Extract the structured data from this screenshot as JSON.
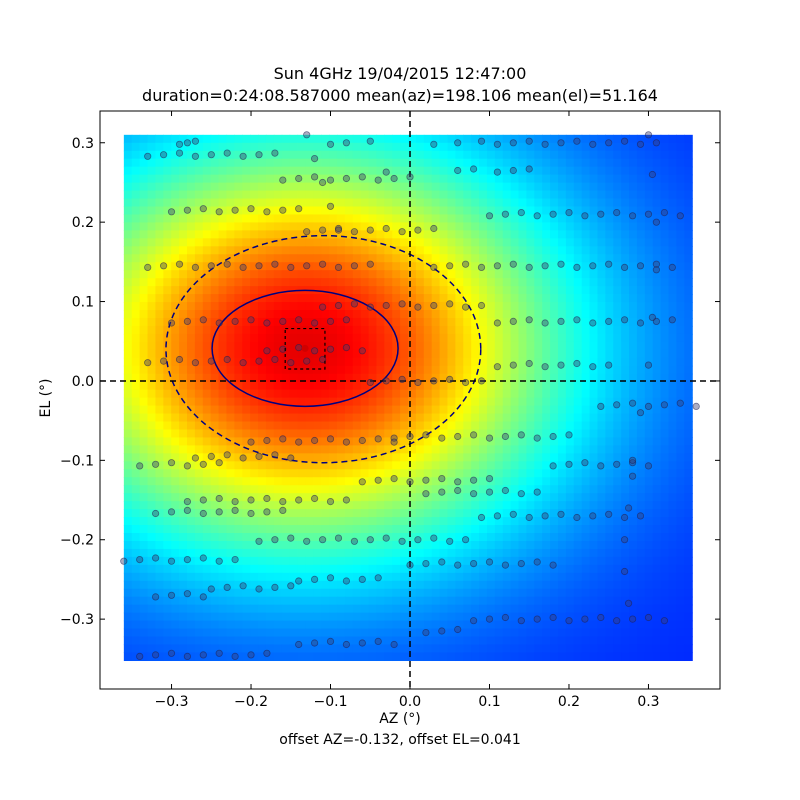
{
  "chart_data": {
    "type": "heatmap",
    "title": "Sun 4GHz 19/04/2015 12:47:00",
    "subtitle": "duration=0:24:08.587000 mean(az)=198.106 mean(el)=51.164",
    "xlabel": "AZ (°)",
    "ylabel": "EL (°)",
    "footer": "offset AZ=-0.132, offset EL=0.041",
    "colormap": "jet",
    "grid": false,
    "xlim": [
      -0.39,
      0.39
    ],
    "ylim": [
      -0.388,
      0.34
    ],
    "heatmap_extent": {
      "x": [
        -0.36,
        0.355
      ],
      "y": [
        -0.352,
        0.31
      ]
    },
    "heatmap_peak": {
      "az": -0.132,
      "el": 0.041
    },
    "xticks": [
      -0.3,
      -0.2,
      -0.1,
      0.0,
      0.1,
      0.2,
      0.3
    ],
    "yticks": [
      -0.3,
      -0.2,
      -0.1,
      0.0,
      0.1,
      0.2,
      0.3
    ],
    "xtick_labels": [
      "−0.3",
      "−0.2",
      "−0.1",
      "0.0",
      "0.1",
      "0.2",
      "0.3"
    ],
    "ytick_labels": [
      "−0.3",
      "−0.2",
      "−0.1",
      "0.0",
      "0.1",
      "0.2",
      "0.3"
    ],
    "crosshair": {
      "az": 0.0,
      "el": 0.0,
      "style": "dashed"
    },
    "ellipses": [
      {
        "name": "inner",
        "center": [
          -0.132,
          0.041
        ],
        "semi_axes": [
          0.117,
          0.073
        ],
        "style": "solid",
        "color": "#000080"
      },
      {
        "name": "outer",
        "center": [
          -0.109,
          0.04
        ],
        "semi_axes": [
          0.198,
          0.143
        ],
        "style": "dashed",
        "color": "#000080"
      }
    ],
    "offset_box": {
      "x": [
        -0.157,
        -0.107
      ],
      "y": [
        0.015,
        0.066
      ],
      "style": "dotted"
    },
    "peak_marker": {
      "az": -0.132,
      "el": 0.041,
      "color": "#d00000"
    },
    "scan_rows": [
      {
        "el": 0.3,
        "x": [
          -0.29,
          -0.28,
          -0.27,
          -0.1,
          -0.08,
          -0.05,
          0.03,
          0.06,
          0.09,
          0.11,
          0.13,
          0.15,
          0.17,
          0.19,
          0.21,
          0.23,
          0.25,
          0.27,
          0.29,
          0.31
        ]
      },
      {
        "el": 0.285,
        "x": [
          -0.33,
          -0.31,
          -0.29,
          -0.27,
          -0.25,
          -0.23,
          -0.21,
          -0.19,
          -0.17
        ]
      },
      {
        "el": 0.265,
        "x": [
          -0.03,
          0.06,
          0.08,
          0.11,
          0.13,
          0.15
        ]
      },
      {
        "el": 0.255,
        "x": [
          -0.16,
          -0.14,
          -0.12,
          -0.1,
          -0.08,
          -0.06,
          -0.04,
          -0.02,
          0.0
        ]
      },
      {
        "el": 0.215,
        "x": [
          -0.3,
          -0.28,
          -0.26,
          -0.24,
          -0.22,
          -0.2,
          -0.18,
          -0.16,
          -0.14
        ]
      },
      {
        "el": 0.21,
        "x": [
          0.1,
          0.12,
          0.14,
          0.16,
          0.18,
          0.2,
          0.22,
          0.24,
          0.26,
          0.28,
          0.3,
          0.32,
          0.34
        ]
      },
      {
        "el": 0.19,
        "x": [
          -0.13,
          -0.11,
          -0.09,
          -0.07,
          -0.05,
          -0.03,
          -0.01,
          0.01,
          0.03
        ]
      },
      {
        "el": 0.145,
        "x": [
          0.03,
          0.05,
          0.07,
          0.09,
          0.11,
          0.13,
          0.15,
          0.17,
          0.19,
          0.21,
          0.23,
          0.25,
          0.27,
          0.29,
          0.31,
          0.33
        ]
      },
      {
        "el": 0.145,
        "x": [
          -0.33,
          -0.31,
          -0.29,
          -0.27,
          -0.25,
          -0.23,
          -0.21,
          -0.19,
          -0.17,
          -0.15,
          -0.13,
          -0.11,
          -0.09,
          -0.07,
          -0.05
        ]
      },
      {
        "el": 0.095,
        "x": [
          -0.11,
          -0.09,
          -0.07,
          -0.05,
          -0.03,
          -0.01,
          0.01,
          0.03,
          0.05,
          0.07,
          0.09
        ]
      },
      {
        "el": 0.075,
        "x": [
          -0.3,
          -0.28,
          -0.26,
          -0.24,
          -0.22,
          -0.2,
          -0.18,
          -0.16,
          -0.14,
          -0.12,
          -0.1,
          -0.08
        ]
      },
      {
        "el": 0.075,
        "x": [
          0.11,
          0.13,
          0.15,
          0.17,
          0.19,
          0.21,
          0.23,
          0.25,
          0.27,
          0.29,
          0.31,
          0.33
        ]
      },
      {
        "el": 0.04,
        "x": [
          -0.18,
          -0.16,
          -0.14,
          -0.12,
          -0.1,
          -0.08,
          -0.06
        ]
      },
      {
        "el": 0.025,
        "x": [
          -0.33,
          -0.31,
          -0.29,
          -0.27,
          -0.25,
          -0.23,
          -0.21,
          -0.19,
          -0.17,
          -0.15,
          -0.13,
          -0.11
        ]
      },
      {
        "el": 0.02,
        "x": [
          0.11,
          0.13,
          0.15,
          0.17,
          0.19,
          0.21,
          0.23,
          0.25
        ]
      },
      {
        "el": 0.0,
        "x": [
          -0.05,
          -0.03,
          -0.01,
          0.01,
          0.03,
          0.05,
          0.07,
          0.09
        ]
      },
      {
        "el": -0.03,
        "x": [
          0.24,
          0.26,
          0.28,
          0.3,
          0.32,
          0.34,
          0.36
        ]
      },
      {
        "el": -0.07,
        "x": [
          -0.02,
          0.0,
          0.02,
          0.04,
          0.06,
          0.08,
          0.1,
          0.12,
          0.14,
          0.16,
          0.18,
          0.2
        ]
      },
      {
        "el": -0.075,
        "x": [
          -0.2,
          -0.18,
          -0.16,
          -0.14,
          -0.12,
          -0.1,
          -0.08,
          -0.06,
          -0.04,
          -0.02
        ]
      },
      {
        "el": -0.095,
        "x": [
          -0.27,
          -0.25,
          -0.23,
          -0.21,
          -0.19,
          -0.17,
          -0.15
        ]
      },
      {
        "el": -0.105,
        "x": [
          -0.34,
          -0.32,
          -0.3,
          -0.28,
          -0.26,
          -0.24
        ]
      },
      {
        "el": -0.105,
        "x": [
          0.18,
          0.2,
          0.22,
          0.24,
          0.26,
          0.28,
          0.3
        ]
      },
      {
        "el": -0.125,
        "x": [
          -0.06,
          -0.04,
          -0.02,
          0.0,
          0.02,
          0.04,
          0.06,
          0.08,
          0.1
        ]
      },
      {
        "el": -0.15,
        "x": [
          -0.28,
          -0.26,
          -0.24,
          -0.22,
          -0.2,
          -0.18,
          -0.16,
          -0.14,
          -0.12,
          -0.1,
          -0.08
        ]
      },
      {
        "el": -0.14,
        "x": [
          0.02,
          0.04,
          0.06,
          0.08,
          0.1,
          0.12,
          0.14,
          0.16
        ]
      },
      {
        "el": -0.165,
        "x": [
          -0.32,
          -0.3,
          -0.28,
          -0.26,
          -0.24,
          -0.22,
          -0.2,
          -0.18,
          -0.16
        ]
      },
      {
        "el": -0.17,
        "x": [
          0.09,
          0.11,
          0.13,
          0.15,
          0.17,
          0.19,
          0.21,
          0.23,
          0.25,
          0.27,
          0.29
        ]
      },
      {
        "el": -0.2,
        "x": [
          -0.19,
          -0.17,
          -0.15,
          -0.13,
          -0.11,
          -0.09,
          -0.07,
          -0.05,
          -0.03,
          -0.01,
          0.01,
          0.03,
          0.05,
          0.07
        ]
      },
      {
        "el": -0.225,
        "x": [
          -0.36,
          -0.34,
          -0.32,
          -0.3,
          -0.28,
          -0.26,
          -0.24,
          -0.22
        ]
      },
      {
        "el": -0.23,
        "x": [
          0.0,
          0.02,
          0.04,
          0.06,
          0.08,
          0.1,
          0.12,
          0.14,
          0.16,
          0.18
        ]
      },
      {
        "el": -0.25,
        "x": [
          -0.14,
          -0.12,
          -0.1,
          -0.08,
          -0.06,
          -0.04
        ]
      },
      {
        "el": -0.26,
        "x": [
          -0.25,
          -0.23,
          -0.21,
          -0.19,
          -0.17,
          -0.15
        ]
      },
      {
        "el": -0.27,
        "x": [
          -0.32,
          -0.3,
          -0.28,
          -0.26
        ]
      },
      {
        "el": -0.3,
        "x": [
          0.08,
          0.1,
          0.12,
          0.14,
          0.16,
          0.18,
          0.2,
          0.22,
          0.24,
          0.26,
          0.28,
          0.3,
          0.32
        ]
      },
      {
        "el": -0.315,
        "x": [
          0.02,
          0.04,
          0.06
        ]
      },
      {
        "el": -0.33,
        "x": [
          -0.14,
          -0.12,
          -0.1,
          -0.08,
          -0.06,
          -0.04,
          -0.02
        ]
      },
      {
        "el": -0.345,
        "x": [
          -0.34,
          -0.32,
          -0.3,
          -0.28,
          -0.26,
          -0.24,
          -0.22,
          -0.2,
          -0.18
        ]
      }
    ],
    "scan_curves": [
      {
        "x": [
          0.3,
          0.305,
          0.31,
          0.31,
          0.305,
          0.3,
          0.29,
          0.28
        ],
        "y": [
          0.31,
          0.26,
          0.2,
          0.14,
          0.08,
          0.02,
          -0.04,
          -0.1
        ]
      },
      {
        "x": [
          0.28,
          0.275,
          0.27,
          0.27,
          0.275
        ],
        "y": [
          -0.12,
          -0.16,
          -0.2,
          -0.24,
          -0.28
        ]
      },
      {
        "x": [
          -0.13,
          -0.12,
          -0.11,
          -0.1,
          -0.09
        ],
        "y": [
          0.31,
          0.28,
          0.25,
          0.22,
          0.19
        ]
      }
    ]
  }
}
